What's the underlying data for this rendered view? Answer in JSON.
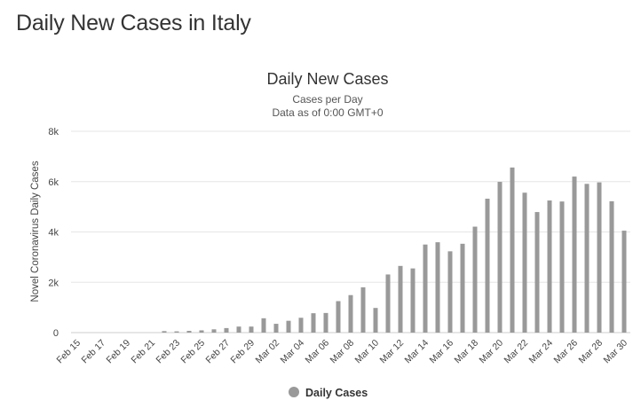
{
  "page": {
    "heading": "Daily New Cases in Italy"
  },
  "chart_data": {
    "type": "bar",
    "title": "Daily New Cases",
    "subtitle_lines": [
      "Cases per Day",
      "Data as of 0:00 GMT+0"
    ],
    "ylabel": "Novel Coronavirus Daily Cases",
    "xlabel": "",
    "ylim": [
      0,
      8000
    ],
    "yticks": [
      0,
      2000,
      4000,
      6000,
      8000
    ],
    "ytick_labels": [
      "0",
      "2k",
      "4k",
      "6k",
      "8k"
    ],
    "grid": true,
    "legend_position": "bottom-center",
    "categories": [
      "Feb 15",
      "Feb 16",
      "Feb 17",
      "Feb 18",
      "Feb 19",
      "Feb 20",
      "Feb 21",
      "Feb 22",
      "Feb 23",
      "Feb 24",
      "Feb 25",
      "Feb 26",
      "Feb 27",
      "Feb 28",
      "Feb 29",
      "Mar 01",
      "Mar 02",
      "Mar 03",
      "Mar 04",
      "Mar 05",
      "Mar 06",
      "Mar 07",
      "Mar 08",
      "Mar 09",
      "Mar 10",
      "Mar 11",
      "Mar 12",
      "Mar 13",
      "Mar 14",
      "Mar 15",
      "Mar 16",
      "Mar 17",
      "Mar 18",
      "Mar 19",
      "Mar 20",
      "Mar 21",
      "Mar 22",
      "Mar 23",
      "Mar 24",
      "Mar 25",
      "Mar 26",
      "Mar 27",
      "Mar 28",
      "Mar 29",
      "Mar 30"
    ],
    "x_tick_labels": [
      "Feb 15",
      "Feb 17",
      "Feb 19",
      "Feb 21",
      "Feb 23",
      "Feb 25",
      "Feb 27",
      "Feb 29",
      "Mar 02",
      "Mar 04",
      "Mar 06",
      "Mar 08",
      "Mar 10",
      "Mar 12",
      "Mar 14",
      "Mar 16",
      "Mar 18",
      "Mar 20",
      "Mar 22",
      "Mar 24",
      "Mar 26",
      "Mar 28",
      "Mar 30"
    ],
    "series": [
      {
        "name": "Daily Cases",
        "color": "#999999",
        "values": [
          0,
          0,
          0,
          0,
          0,
          0,
          0,
          60,
          50,
          70,
          90,
          130,
          180,
          240,
          240,
          570,
          350,
          470,
          590,
          770,
          780,
          1250,
          1490,
          1800,
          980,
          2310,
          2650,
          2550,
          3500,
          3590,
          3230,
          3530,
          4210,
          5320,
          5990,
          6560,
          5560,
          4790,
          5250,
          5210,
          6200,
          5910,
          5970,
          5220,
          4050
        ]
      }
    ]
  }
}
